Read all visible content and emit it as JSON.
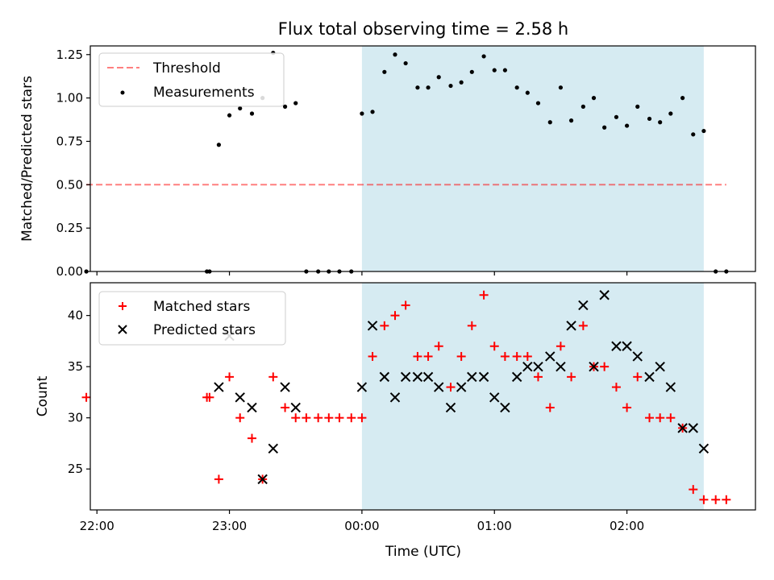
{
  "chart_data": [
    {
      "type": "scatter",
      "title": "Flux total observing time = 2.58 h",
      "ylabel": "Matched/Predicted stars",
      "ylim": [
        0,
        1.3
      ],
      "yticks": [
        "0.00",
        "0.25",
        "0.50",
        "0.75",
        "1.00",
        "1.25"
      ],
      "xlim_hours": [
        -2.05,
        2.97
      ],
      "shaded_span_hours": [
        0,
        2.58
      ],
      "shade_color": "#add8e6",
      "threshold": {
        "name": "Threshold",
        "value": 0.5,
        "x_range_hours": [
          -2.08,
          2.75
        ],
        "color": "#ff0000"
      },
      "series": [
        {
          "name": "Measurements",
          "color": "#000000",
          "points": [
            [
              -2.08,
              0.0
            ],
            [
              -1.17,
              0.0
            ],
            [
              -1.15,
              0.0
            ],
            [
              -1.08,
              0.73
            ],
            [
              -1.0,
              0.9
            ],
            [
              -0.92,
              0.94
            ],
            [
              -0.83,
              0.91
            ],
            [
              -0.75,
              1.0
            ],
            [
              -0.67,
              1.26
            ],
            [
              -0.58,
              0.95
            ],
            [
              -0.5,
              0.97
            ],
            [
              -0.42,
              0.0
            ],
            [
              -0.33,
              0.0
            ],
            [
              -0.25,
              0.0
            ],
            [
              -0.17,
              0.0
            ],
            [
              -0.08,
              0.0
            ],
            [
              0.0,
              0.91
            ],
            [
              0.08,
              0.92
            ],
            [
              0.17,
              1.15
            ],
            [
              0.25,
              1.25
            ],
            [
              0.33,
              1.2
            ],
            [
              0.42,
              1.06
            ],
            [
              0.5,
              1.06
            ],
            [
              0.58,
              1.12
            ],
            [
              0.67,
              1.07
            ],
            [
              0.75,
              1.09
            ],
            [
              0.83,
              1.15
            ],
            [
              0.92,
              1.24
            ],
            [
              1.0,
              1.16
            ],
            [
              1.08,
              1.16
            ],
            [
              1.17,
              1.06
            ],
            [
              1.25,
              1.03
            ],
            [
              1.33,
              0.97
            ],
            [
              1.42,
              0.86
            ],
            [
              1.5,
              1.06
            ],
            [
              1.58,
              0.87
            ],
            [
              1.67,
              0.95
            ],
            [
              1.75,
              1.0
            ],
            [
              1.83,
              0.83
            ],
            [
              1.92,
              0.89
            ],
            [
              2.0,
              0.84
            ],
            [
              2.08,
              0.95
            ],
            [
              2.17,
              0.88
            ],
            [
              2.25,
              0.86
            ],
            [
              2.33,
              0.91
            ],
            [
              2.42,
              1.0
            ],
            [
              2.5,
              0.79
            ],
            [
              2.58,
              0.81
            ],
            [
              2.67,
              0.0
            ],
            [
              2.75,
              0.0
            ]
          ]
        }
      ]
    },
    {
      "type": "scatter",
      "xlabel": "Time (UTC)",
      "ylabel": "Count",
      "ylim": [
        21,
        43.2
      ],
      "yticks": [
        "25",
        "30",
        "35",
        "40"
      ],
      "xticks": [
        "22:00",
        "23:00",
        "00:00",
        "01:00",
        "02:00"
      ],
      "xlim_hours": [
        -2.05,
        2.97
      ],
      "shaded_span_hours": [
        0,
        2.58
      ],
      "shade_color": "#add8e6",
      "series": [
        {
          "name": "Matched stars",
          "color": "#ff0000",
          "marker": "plus",
          "points": [
            [
              -2.08,
              32
            ],
            [
              -1.17,
              32
            ],
            [
              -1.15,
              32
            ],
            [
              -1.08,
              24
            ],
            [
              -1.0,
              34
            ],
            [
              -0.92,
              30
            ],
            [
              -0.83,
              28
            ],
            [
              -0.75,
              24
            ],
            [
              -0.67,
              34
            ],
            [
              -0.58,
              31
            ],
            [
              -0.5,
              30
            ],
            [
              -0.42,
              30
            ],
            [
              -0.33,
              30
            ],
            [
              -0.25,
              30
            ],
            [
              -0.17,
              30
            ],
            [
              -0.08,
              30
            ],
            [
              0.0,
              30
            ],
            [
              0.08,
              36
            ],
            [
              0.17,
              39
            ],
            [
              0.25,
              40
            ],
            [
              0.33,
              41
            ],
            [
              0.42,
              36
            ],
            [
              0.5,
              36
            ],
            [
              0.58,
              37
            ],
            [
              0.67,
              33
            ],
            [
              0.75,
              36
            ],
            [
              0.83,
              39
            ],
            [
              0.92,
              42
            ],
            [
              1.0,
              37
            ],
            [
              1.08,
              36
            ],
            [
              1.17,
              36
            ],
            [
              1.25,
              36
            ],
            [
              1.33,
              34
            ],
            [
              1.42,
              31
            ],
            [
              1.5,
              37
            ],
            [
              1.58,
              34
            ],
            [
              1.67,
              39
            ],
            [
              1.75,
              35
            ],
            [
              1.83,
              35
            ],
            [
              1.92,
              33
            ],
            [
              2.0,
              31
            ],
            [
              2.08,
              34
            ],
            [
              2.17,
              30
            ],
            [
              2.25,
              30
            ],
            [
              2.33,
              30
            ],
            [
              2.42,
              29
            ],
            [
              2.5,
              23
            ],
            [
              2.58,
              22
            ],
            [
              2.67,
              22
            ],
            [
              2.75,
              22
            ]
          ]
        },
        {
          "name": "Predicted stars",
          "color": "#000000",
          "marker": "x",
          "points": [
            [
              -1.08,
              33
            ],
            [
              -1.0,
              38
            ],
            [
              -0.92,
              32
            ],
            [
              -0.83,
              31
            ],
            [
              -0.75,
              24
            ],
            [
              -0.67,
              27
            ],
            [
              -0.58,
              33
            ],
            [
              -0.5,
              31
            ],
            [
              0.0,
              33
            ],
            [
              0.08,
              39
            ],
            [
              0.17,
              34
            ],
            [
              0.25,
              32
            ],
            [
              0.33,
              34
            ],
            [
              0.42,
              34
            ],
            [
              0.5,
              34
            ],
            [
              0.58,
              33
            ],
            [
              0.67,
              31
            ],
            [
              0.75,
              33
            ],
            [
              0.83,
              34
            ],
            [
              0.92,
              34
            ],
            [
              1.0,
              32
            ],
            [
              1.08,
              31
            ],
            [
              1.17,
              34
            ],
            [
              1.25,
              35
            ],
            [
              1.33,
              35
            ],
            [
              1.42,
              36
            ],
            [
              1.5,
              35
            ],
            [
              1.58,
              39
            ],
            [
              1.67,
              41
            ],
            [
              1.75,
              35
            ],
            [
              1.83,
              42
            ],
            [
              1.92,
              37
            ],
            [
              2.0,
              37
            ],
            [
              2.08,
              36
            ],
            [
              2.17,
              34
            ],
            [
              2.25,
              35
            ],
            [
              2.33,
              33
            ],
            [
              2.42,
              29
            ],
            [
              2.5,
              29
            ],
            [
              2.58,
              27
            ]
          ]
        }
      ]
    }
  ]
}
